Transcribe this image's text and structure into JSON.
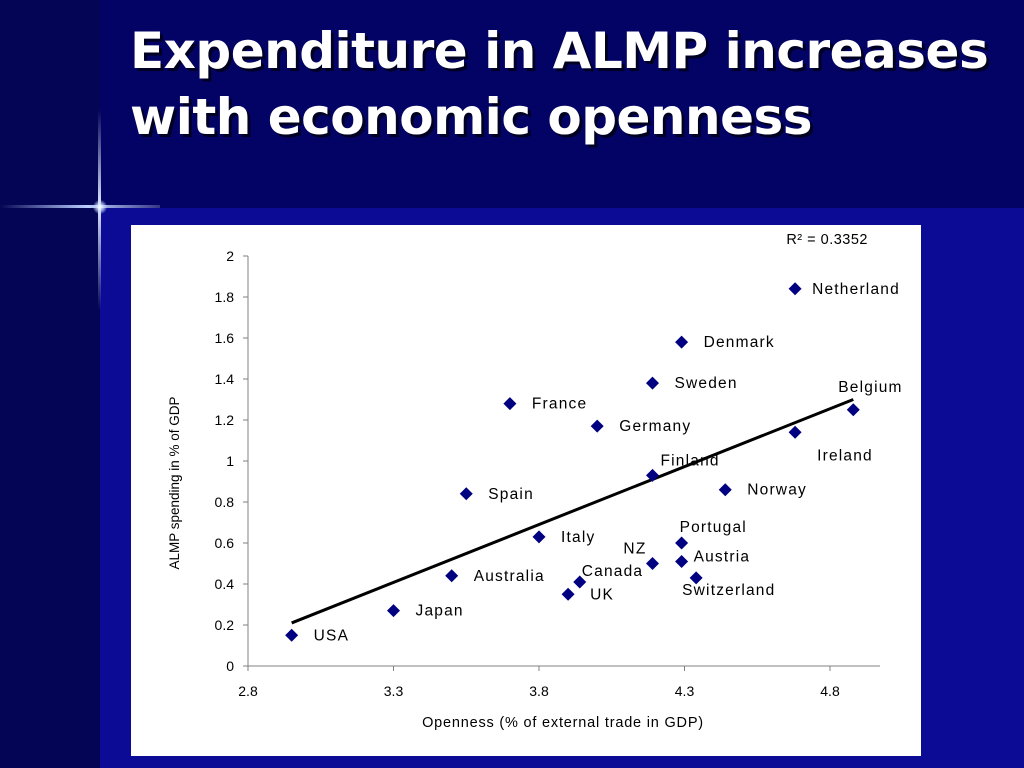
{
  "slide": {
    "title": "Expenditure in ALMP increases with economic openness"
  },
  "chart_data": {
    "type": "scatter",
    "title": "",
    "xlabel": "Openness (% of external trade in GDP)",
    "ylabel": "ALMP spending in % of GDP",
    "xlim": [
      2.8,
      4.95
    ],
    "ylim": [
      0,
      2
    ],
    "xticks": [
      2.8,
      3.3,
      3.8,
      4.3,
      4.8
    ],
    "xtick_labels": [
      "2.8",
      "3.3",
      "3.8",
      "4.3",
      "4.8"
    ],
    "yticks": [
      0,
      0.2,
      0.4,
      0.6,
      0.8,
      1,
      1.2,
      1.4,
      1.6,
      1.8,
      2
    ],
    "ytick_labels": [
      "0",
      "0.2",
      "0.4",
      "0.6",
      "0.8",
      "1",
      "1.2",
      "1.4",
      "1.6",
      "1.8",
      "2"
    ],
    "grid": false,
    "marker_color": "#000080",
    "points": [
      {
        "label": "USA",
        "x": 2.95,
        "y": 0.15
      },
      {
        "label": "Japan",
        "x": 3.3,
        "y": 0.27
      },
      {
        "label": "Australia",
        "x": 3.5,
        "y": 0.44
      },
      {
        "label": "Spain",
        "x": 3.55,
        "y": 0.84
      },
      {
        "label": "France",
        "x": 3.7,
        "y": 1.28
      },
      {
        "label": "Italy",
        "x": 3.8,
        "y": 0.63
      },
      {
        "label": "UK",
        "x": 3.9,
        "y": 0.35
      },
      {
        "label": "Canada",
        "x": 3.94,
        "y": 0.41
      },
      {
        "label": "Germany",
        "x": 4.0,
        "y": 1.17
      },
      {
        "label": "Finland",
        "x": 4.19,
        "y": 0.93
      },
      {
        "label": "NZ",
        "x": 4.19,
        "y": 0.5
      },
      {
        "label": "Sweden",
        "x": 4.19,
        "y": 1.38
      },
      {
        "label": "Denmark",
        "x": 4.29,
        "y": 1.58
      },
      {
        "label": "Portugal",
        "x": 4.29,
        "y": 0.6
      },
      {
        "label": "Austria",
        "x": 4.29,
        "y": 0.51
      },
      {
        "label": "Switzerland",
        "x": 4.34,
        "y": 0.43
      },
      {
        "label": "Norway",
        "x": 4.44,
        "y": 0.86
      },
      {
        "label": "Netherland",
        "x": 4.68,
        "y": 1.84
      },
      {
        "label": "Ireland",
        "x": 4.68,
        "y": 1.14
      },
      {
        "label": "Belgium",
        "x": 4.88,
        "y": 1.25
      }
    ],
    "trendline": {
      "x": [
        2.95,
        4.88
      ],
      "y": [
        0.21,
        1.3
      ]
    },
    "annotation": "R² = 0.3352"
  }
}
